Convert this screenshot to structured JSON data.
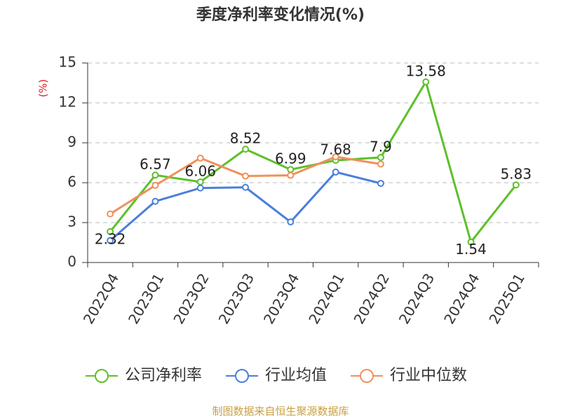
{
  "chart_data": {
    "type": "line",
    "title": "季度净利率变化情况(%)",
    "y_label": "(%)",
    "source": "制图数据来自恒生聚源数据库",
    "categories": [
      "2022Q4",
      "2023Q1",
      "2023Q2",
      "2023Q3",
      "2023Q4",
      "2024Q1",
      "2024Q2",
      "2024Q3",
      "2024Q4",
      "2025Q1"
    ],
    "series": [
      {
        "name": "公司净利率",
        "color": "#5cc02a",
        "values": [
          2.32,
          6.57,
          6.06,
          8.52,
          6.99,
          7.68,
          7.9,
          13.58,
          1.54,
          5.83
        ],
        "labels": true
      },
      {
        "name": "行业均值",
        "color": "#4a7fdb",
        "values": [
          1.65,
          4.6,
          5.6,
          5.65,
          3.05,
          6.8,
          5.95,
          null,
          null,
          null
        ]
      },
      {
        "name": "行业中位数",
        "color": "#f0905a",
        "values": [
          3.65,
          5.8,
          7.85,
          6.5,
          6.55,
          7.95,
          7.4,
          null,
          null,
          null
        ]
      }
    ],
    "ylim": [
      0,
      15
    ],
    "yticks": [
      0,
      3,
      6,
      9,
      12,
      15
    ],
    "grid": true
  }
}
